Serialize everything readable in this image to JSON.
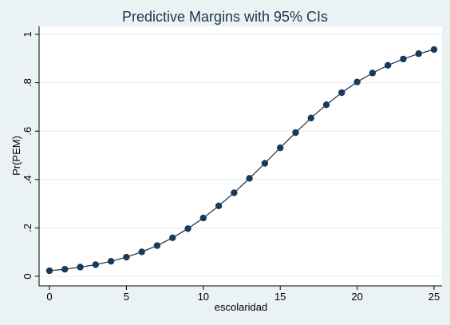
{
  "chart_data": {
    "type": "line",
    "title": "Predictive Margins with 95% CIs",
    "xlabel": "escolaridad",
    "ylabel": "Pr(PEM)",
    "xlim": [
      0,
      25
    ],
    "ylim": [
      0,
      1
    ],
    "x_ticks": [
      0,
      5,
      10,
      15,
      20,
      25
    ],
    "x_tick_labels": [
      "0",
      "5",
      "10",
      "15",
      "20",
      "25"
    ],
    "y_ticks": [
      0,
      0.2,
      0.4,
      0.6,
      0.8,
      1
    ],
    "y_tick_labels": [
      "0",
      ".2",
      ".4",
      ".6",
      ".8",
      "1"
    ],
    "grid": "horizontal",
    "colors": {
      "background": "#eaf2f3",
      "plot_area": "#ffffff",
      "line": "#1a2f4a",
      "marker": "#1a3a5c",
      "grid": "#e3ecef",
      "title": "#1f3550"
    },
    "series": [
      {
        "x": [
          0,
          1,
          2,
          3,
          4,
          5,
          6,
          7,
          8,
          9,
          10,
          11,
          12,
          13,
          14,
          15,
          16,
          17,
          18,
          19,
          20,
          21,
          22,
          23,
          24,
          25
        ],
        "y": [
          0.023,
          0.029,
          0.038,
          0.048,
          0.062,
          0.079,
          0.101,
          0.127,
          0.159,
          0.197,
          0.241,
          0.291,
          0.345,
          0.405,
          0.467,
          0.531,
          0.594,
          0.654,
          0.709,
          0.759,
          0.803,
          0.84,
          0.872,
          0.898,
          0.92,
          0.937
        ]
      }
    ]
  }
}
